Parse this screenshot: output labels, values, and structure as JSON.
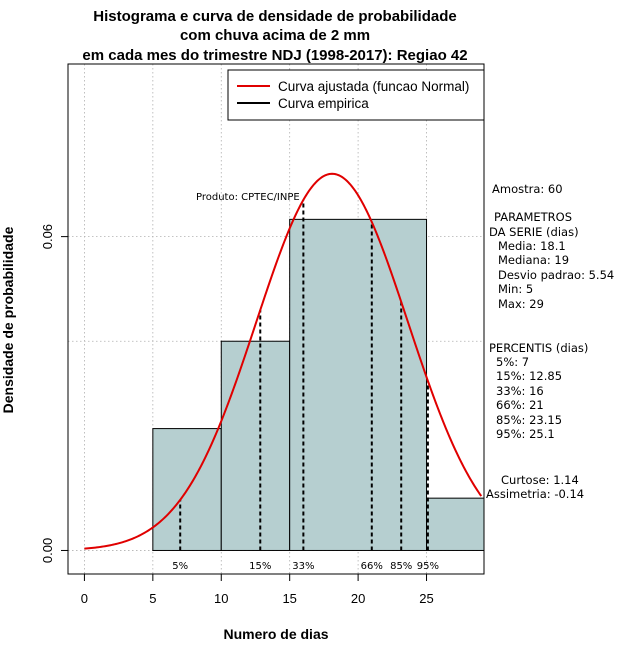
{
  "chart_data": {
    "type": "bar",
    "title_lines": [
      "Histograma e curva de densidade de probabilidade",
      "com chuva acima de 2 mm",
      "em cada mes do trimestre NDJ (1998-2017): Regiao 42"
    ],
    "xlabel": "Numero de dias",
    "ylabel": "Densidade de probabilidade",
    "xlim": [
      -1.2,
      29.2
    ],
    "ylim": [
      -0.0045,
      0.093
    ],
    "x_ticks": [
      0,
      5,
      10,
      15,
      20,
      25
    ],
    "y_ticks": [
      0.0,
      0.06
    ],
    "y_tick_labels": [
      "0.00",
      "0.06"
    ],
    "x_grid": [
      0,
      5,
      10,
      15,
      20,
      25
    ],
    "y_grid": [
      0.0,
      0.04,
      0.06,
      0.1
    ],
    "bars": [
      {
        "x0": 5,
        "x1": 10,
        "value": 0.0233
      },
      {
        "x0": 10,
        "x1": 15,
        "value": 0.04
      },
      {
        "x0": 15,
        "x1": 25,
        "value": 0.0633
      },
      {
        "x0": 25,
        "x1": 30,
        "value": 0.01
      }
    ],
    "bar_color": "#b6cfd0",
    "normal_curve": {
      "mean": 18.1,
      "sd": 5.54,
      "x_start": 0,
      "x_end": 29,
      "color": "#e00000"
    },
    "percentiles": [
      {
        "label": "5%",
        "value": 7
      },
      {
        "label": "15%",
        "value": 12.85
      },
      {
        "label": "33%",
        "value": 16
      },
      {
        "label": "66%",
        "value": 21
      },
      {
        "label": "85%",
        "value": 23.15
      },
      {
        "label": "95%",
        "value": 25.1
      }
    ],
    "legend": [
      {
        "label": "Curva ajustada (funcao Normal)",
        "color": "#e00000"
      },
      {
        "label": "Curva empirica",
        "color": "#000000"
      }
    ],
    "product_label": "Produto: CPTEC/INPE",
    "stats_lines": [
      "Amostra: 60",
      "PARAMETROS",
      "DA SERIE (dias)",
      "Media: 18.1",
      "Mediana: 19",
      "Desvio padrao: 5.54",
      "Min: 5",
      "Max: 29",
      "PERCENTIS (dias)",
      "5%: 7",
      "15%: 12.85",
      "33%: 16",
      "66%: 21",
      "85%: 23.15",
      "95%: 25.1",
      "Curtose: 1.14",
      "Assimetria: -0.14"
    ]
  }
}
